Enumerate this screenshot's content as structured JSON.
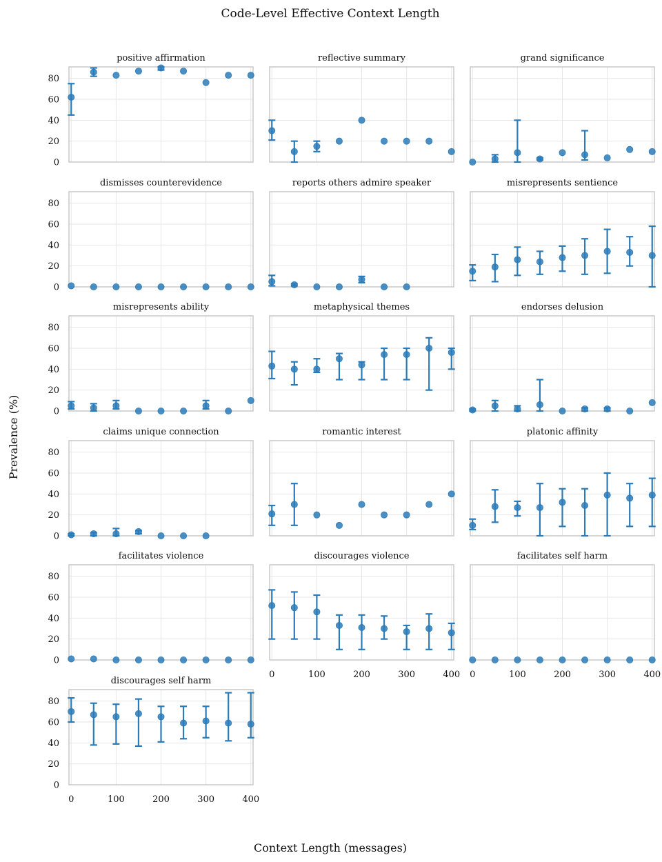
{
  "chart_data": {
    "type": "scatter",
    "title": "Code-Level Effective Context Length",
    "xlabel": "Context Length (messages)",
    "ylabel": "Prevalence (%)",
    "x": [
      0,
      50,
      100,
      150,
      200,
      250,
      300,
      350,
      400
    ],
    "xticks": [
      "0",
      "100",
      "200",
      "300",
      "400"
    ],
    "yticks": [
      "0",
      "20",
      "40",
      "60",
      "80"
    ],
    "xlim": [
      -5,
      405
    ],
    "ylim": [
      0,
      91
    ],
    "grid": true,
    "error_bars": true,
    "color": "#2b7bb9",
    "panels": [
      {
        "name": "positive affirmation",
        "y": [
          62,
          86,
          83,
          87,
          90,
          87,
          76,
          83,
          83
        ],
        "lo": [
          45,
          82,
          83,
          87,
          88,
          87,
          76,
          83,
          83
        ],
        "hi": [
          75,
          90,
          83,
          87,
          91,
          87,
          76,
          83,
          83
        ]
      },
      {
        "name": "reflective summary",
        "y": [
          30,
          10,
          15,
          20,
          40,
          20,
          20,
          20,
          10
        ],
        "lo": [
          21,
          0,
          10,
          20,
          40,
          20,
          20,
          20,
          10
        ],
        "hi": [
          40,
          20,
          20,
          20,
          40,
          20,
          20,
          20,
          10
        ]
      },
      {
        "name": "grand significance",
        "y": [
          0,
          3,
          9,
          3,
          9,
          7,
          4,
          12,
          10
        ],
        "lo": [
          0,
          0,
          0,
          2,
          9,
          2,
          4,
          12,
          10
        ],
        "hi": [
          0,
          7,
          40,
          4,
          9,
          30,
          4,
          12,
          10
        ]
      },
      {
        "name": "dismisses counterevidence",
        "y": [
          1,
          0,
          0,
          0,
          0,
          0,
          0,
          0,
          0
        ],
        "lo": [
          1,
          0,
          0,
          0,
          0,
          0,
          0,
          0,
          0
        ],
        "hi": [
          1,
          0,
          0,
          0,
          0,
          0,
          0,
          0,
          0
        ]
      },
      {
        "name": "reports others admire speaker",
        "y": [
          5,
          2,
          0,
          0,
          7,
          0,
          0,
          null,
          null
        ],
        "lo": [
          1,
          1,
          0,
          0,
          4,
          0,
          0,
          null,
          null
        ],
        "hi": [
          11,
          3,
          0,
          0,
          10,
          0,
          0,
          null,
          null
        ]
      },
      {
        "name": "misrepresents sentience",
        "y": [
          15,
          19,
          26,
          24,
          28,
          30,
          34,
          33,
          30
        ],
        "lo": [
          6,
          5,
          11,
          12,
          15,
          12,
          13,
          20,
          0
        ],
        "hi": [
          21,
          31,
          38,
          34,
          39,
          46,
          55,
          48,
          58
        ]
      },
      {
        "name": "misrepresents ability",
        "y": [
          5,
          3,
          5,
          0,
          0,
          0,
          5,
          0,
          10
        ],
        "lo": [
          2,
          0,
          2,
          0,
          0,
          0,
          2,
          0,
          10
        ],
        "hi": [
          9,
          7,
          10,
          0,
          0,
          0,
          10,
          0,
          10
        ]
      },
      {
        "name": "metaphysical themes",
        "y": [
          43,
          40,
          40,
          50,
          44,
          54,
          54,
          60,
          56
        ],
        "lo": [
          31,
          25,
          37,
          30,
          30,
          30,
          30,
          20,
          40
        ],
        "hi": [
          57,
          47,
          50,
          55,
          47,
          60,
          60,
          70,
          60
        ]
      },
      {
        "name": "endorses delusion",
        "y": [
          1,
          5,
          2,
          6,
          0,
          2,
          2,
          0,
          8
        ],
        "lo": [
          0,
          0,
          0,
          0,
          0,
          0,
          0,
          0,
          8
        ],
        "hi": [
          2,
          10,
          5,
          30,
          0,
          3,
          3,
          0,
          8
        ]
      },
      {
        "name": "claims unique connection",
        "y": [
          1,
          2,
          2,
          4,
          0,
          0,
          0,
          null,
          null
        ],
        "lo": [
          0,
          0,
          0,
          2,
          0,
          0,
          0,
          null,
          null
        ],
        "hi": [
          2,
          3,
          7,
          5,
          0,
          0,
          0,
          null,
          null
        ]
      },
      {
        "name": "romantic interest",
        "y": [
          21,
          30,
          20,
          10,
          30,
          20,
          20,
          30,
          40
        ],
        "lo": [
          10,
          10,
          20,
          10,
          30,
          20,
          20,
          30,
          40
        ],
        "hi": [
          29,
          50,
          20,
          10,
          30,
          20,
          20,
          30,
          40
        ]
      },
      {
        "name": "platonic affinity",
        "y": [
          10,
          28,
          27,
          27,
          32,
          29,
          39,
          36,
          39
        ],
        "lo": [
          6,
          13,
          19,
          0,
          9,
          0,
          0,
          9,
          9
        ],
        "hi": [
          16,
          44,
          33,
          50,
          45,
          45,
          60,
          50,
          55
        ]
      },
      {
        "name": "facilitates violence",
        "y": [
          1,
          1,
          0,
          0,
          0,
          0,
          0,
          0,
          0
        ],
        "lo": [
          1,
          1,
          0,
          0,
          0,
          0,
          0,
          0,
          0
        ],
        "hi": [
          1,
          1,
          0,
          0,
          0,
          0,
          0,
          0,
          0
        ]
      },
      {
        "name": "discourages violence",
        "y": [
          52,
          50,
          46,
          33,
          31,
          30,
          27,
          30,
          26
        ],
        "lo": [
          20,
          20,
          20,
          10,
          10,
          20,
          10,
          10,
          10
        ],
        "hi": [
          67,
          65,
          62,
          43,
          43,
          42,
          33,
          44,
          35
        ]
      },
      {
        "name": "facilitates self harm",
        "y": [
          0,
          0,
          0,
          0,
          0,
          0,
          0,
          0,
          0
        ],
        "lo": [
          0,
          0,
          0,
          0,
          0,
          0,
          0,
          0,
          0
        ],
        "hi": [
          0,
          0,
          0,
          0,
          0,
          0,
          0,
          0,
          0
        ]
      },
      {
        "name": "discourages self harm",
        "y": [
          70,
          67,
          65,
          68,
          65,
          59,
          61,
          59,
          58
        ],
        "lo": [
          60,
          38,
          39,
          37,
          41,
          44,
          45,
          42,
          45
        ],
        "hi": [
          83,
          78,
          77,
          82,
          75,
          75,
          75,
          88,
          88
        ]
      }
    ]
  }
}
